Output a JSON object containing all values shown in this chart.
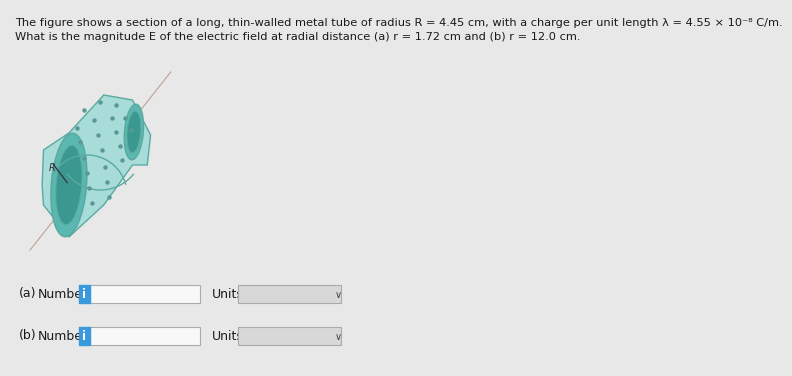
{
  "title_line1": "The figure shows a section of a long, thin-walled metal tube of radius R = 4.45 cm, with a charge per unit length λ = 4.55 × 10⁻⁸ C/m.",
  "title_line2": "What is the magnitude E of the electric field at radial distance (a) r = 1.72 cm and (b) r = 12.0 cm.",
  "bg_color": "#e8e8e8",
  "label_a": "(a)",
  "label_b": "(b)",
  "number_label": "Number",
  "units_label": "Units",
  "input_box_color": "#f5f5f5",
  "input_box_border": "#aaaaaa",
  "info_btn_color": "#3a99dd",
  "info_btn_text": "i",
  "units_box_color": "#cccccc",
  "units_box_border": "#aaaaaa",
  "text_color": "#1a1a1a",
  "font_size_title": 8.2,
  "tube_body": "#a8dcd8",
  "tube_opening": "#5ab8b0",
  "tube_edge": "#5aaaa0",
  "tube_inner": "#3a9890",
  "dot_color": "#5a9898",
  "axis_line_color": "#b09080"
}
